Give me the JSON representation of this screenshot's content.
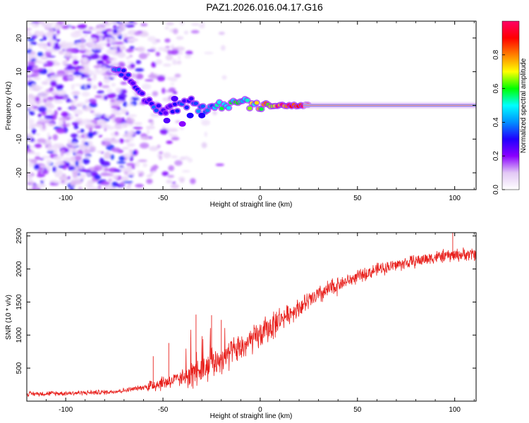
{
  "figure_title": "PAZ1.2026.016.04.17.G16",
  "chart_data": [
    {
      "type": "heatmap",
      "title": "PAZ1.2026.016.04.17.G16",
      "xlabel": "Height of straight line (km)",
      "ylabel": "Frequency (Hz)",
      "xlim": [
        -120,
        111
      ],
      "ylim": [
        -25,
        25
      ],
      "xticks": [
        -100,
        -50,
        0,
        50,
        100
      ],
      "yticks": [
        -20,
        -10,
        0,
        10,
        20
      ],
      "colorbar": {
        "label": "Normalized spectral amplitude",
        "range": [
          0,
          1
        ],
        "ticks": [
          "0.0",
          "0.2",
          "0.4",
          "0.6",
          "0.8"
        ],
        "colormap": [
          "#ffffff",
          "#e2c8f5",
          "#8a00ff",
          "#2000ff",
          "#0090ff",
          "#00ffff",
          "#00ff00",
          "#ffff00",
          "#ff8000",
          "#ff0000",
          "#ff0066"
        ]
      },
      "ridge": {
        "description_points_x": [
          -75,
          -70,
          -66,
          -62,
          -58,
          -55,
          -50,
          -45,
          -40,
          -35,
          -30,
          -25,
          -20,
          -15,
          -10,
          -5,
          0,
          5,
          10,
          20,
          111
        ],
        "description_points_y": [
          9.5,
          9.5,
          7,
          4,
          1.5,
          0,
          -2,
          -1,
          0,
          1,
          -1.5,
          0.5,
          0,
          0.5,
          1.5,
          0,
          0,
          0,
          0,
          0,
          0
        ],
        "amplitude": [
          0.35,
          0.35,
          0.3,
          0.3,
          0.3,
          0.35,
          0.3,
          0.3,
          0.35,
          0.35,
          0.4,
          0.45,
          0.55,
          0.6,
          0.55,
          0.65,
          0.7,
          0.8,
          0.95,
          1.0,
          1.0
        ]
      },
      "noise_region_x": [
        -120,
        -40
      ]
    },
    {
      "type": "line",
      "xlabel": "Height of straight line (km)",
      "ylabel": "SNR (10 * v/v)",
      "xlim": [
        -120,
        111
      ],
      "ylim": [
        0,
        2550
      ],
      "xticks": [
        -100,
        -50,
        0,
        50,
        100
      ],
      "yticks": [
        500,
        1000,
        1500,
        2000,
        2500
      ],
      "line_color": "#e8201c",
      "trend_x": [
        -120,
        -100,
        -80,
        -70,
        -60,
        -50,
        -40,
        -30,
        -20,
        -10,
        0,
        10,
        20,
        30,
        40,
        50,
        60,
        70,
        80,
        90,
        100,
        111
      ],
      "trend_y": [
        110,
        120,
        135,
        160,
        210,
        280,
        340,
        480,
        640,
        800,
        1000,
        1230,
        1420,
        1600,
        1760,
        1880,
        1990,
        2060,
        2120,
        2180,
        2210,
        2230
      ],
      "spikes": [
        {
          "x": -55,
          "y": 680
        },
        {
          "x": -47,
          "y": 880
        },
        {
          "x": -33,
          "y": 1310
        },
        {
          "x": -25,
          "y": 1300
        },
        {
          "x": -20,
          "y": 1230
        },
        {
          "x": 99,
          "y": 2550
        }
      ]
    }
  ]
}
